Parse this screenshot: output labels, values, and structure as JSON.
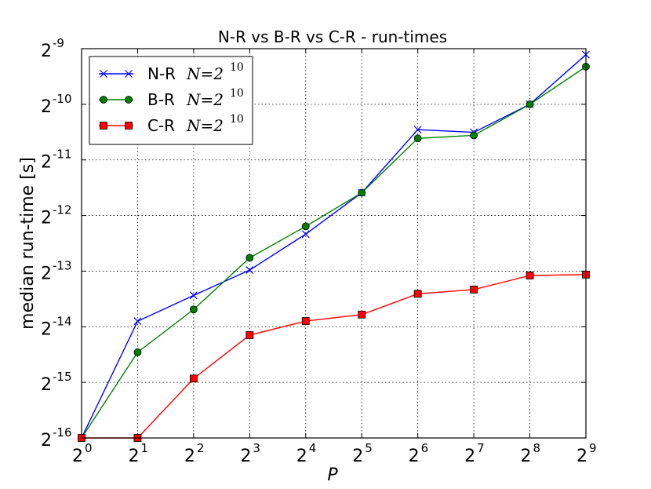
{
  "chart_data": {
    "type": "line",
    "title": "N-R vs B-R vs C-R - run-times",
    "xlabel": "P",
    "ylabel": "median run-time [s]",
    "x": [
      1,
      2,
      4,
      8,
      16,
      32,
      64,
      128,
      256,
      512
    ],
    "xscale": "log2",
    "yscale": "log2",
    "xlim": [
      1,
      512
    ],
    "ylim": [
      1.52587890625e-05,
      0.001953125
    ],
    "grid": true,
    "legend_position": "top-left",
    "x_ticks": [
      {
        "base": "2",
        "exp": "0"
      },
      {
        "base": "2",
        "exp": "1"
      },
      {
        "base": "2",
        "exp": "2"
      },
      {
        "base": "2",
        "exp": "3"
      },
      {
        "base": "2",
        "exp": "4"
      },
      {
        "base": "2",
        "exp": "5"
      },
      {
        "base": "2",
        "exp": "6"
      },
      {
        "base": "2",
        "exp": "7"
      },
      {
        "base": "2",
        "exp": "8"
      },
      {
        "base": "2",
        "exp": "9"
      }
    ],
    "y_ticks": [
      {
        "base": "2",
        "exp": "-16"
      },
      {
        "base": "2",
        "exp": "-15"
      },
      {
        "base": "2",
        "exp": "-14"
      },
      {
        "base": "2",
        "exp": "-13"
      },
      {
        "base": "2",
        "exp": "-12"
      },
      {
        "base": "2",
        "exp": "-11"
      },
      {
        "base": "2",
        "exp": "-10"
      },
      {
        "base": "2",
        "exp": "-9"
      }
    ],
    "series": [
      {
        "label": "N-R",
        "math": "N=2",
        "math_exp": "10",
        "color": "#0000ff",
        "marker": "x",
        "values": [
          1.526e-05,
          6.54e-05,
          9.02e-05,
          0.0001237,
          0.0001936,
          0.0003242,
          0.0007118,
          0.0006886,
          0.0009766,
          0.0018119
        ]
      },
      {
        "label": "B-R",
        "math": "N=2",
        "math_exp": "10",
        "color": "#008000",
        "marker": "circle",
        "values": [
          1.526e-05,
          4.44e-05,
          7.57e-05,
          0.0001441,
          0.0002133,
          0.0003242,
          0.0006386,
          0.0006629,
          0.0009766,
          0.0015617
        ]
      },
      {
        "label": "C-R",
        "math": "N=2",
        "math_exp": "10",
        "color": "#ff0000",
        "marker": "square",
        "values": [
          1.526e-05,
          1.526e-05,
          3.2e-05,
          5.5e-05,
          6.55e-05,
          7.1e-05,
          9.2e-05,
          9.7e-05,
          0.0001156,
          0.0001169
        ]
      }
    ]
  }
}
